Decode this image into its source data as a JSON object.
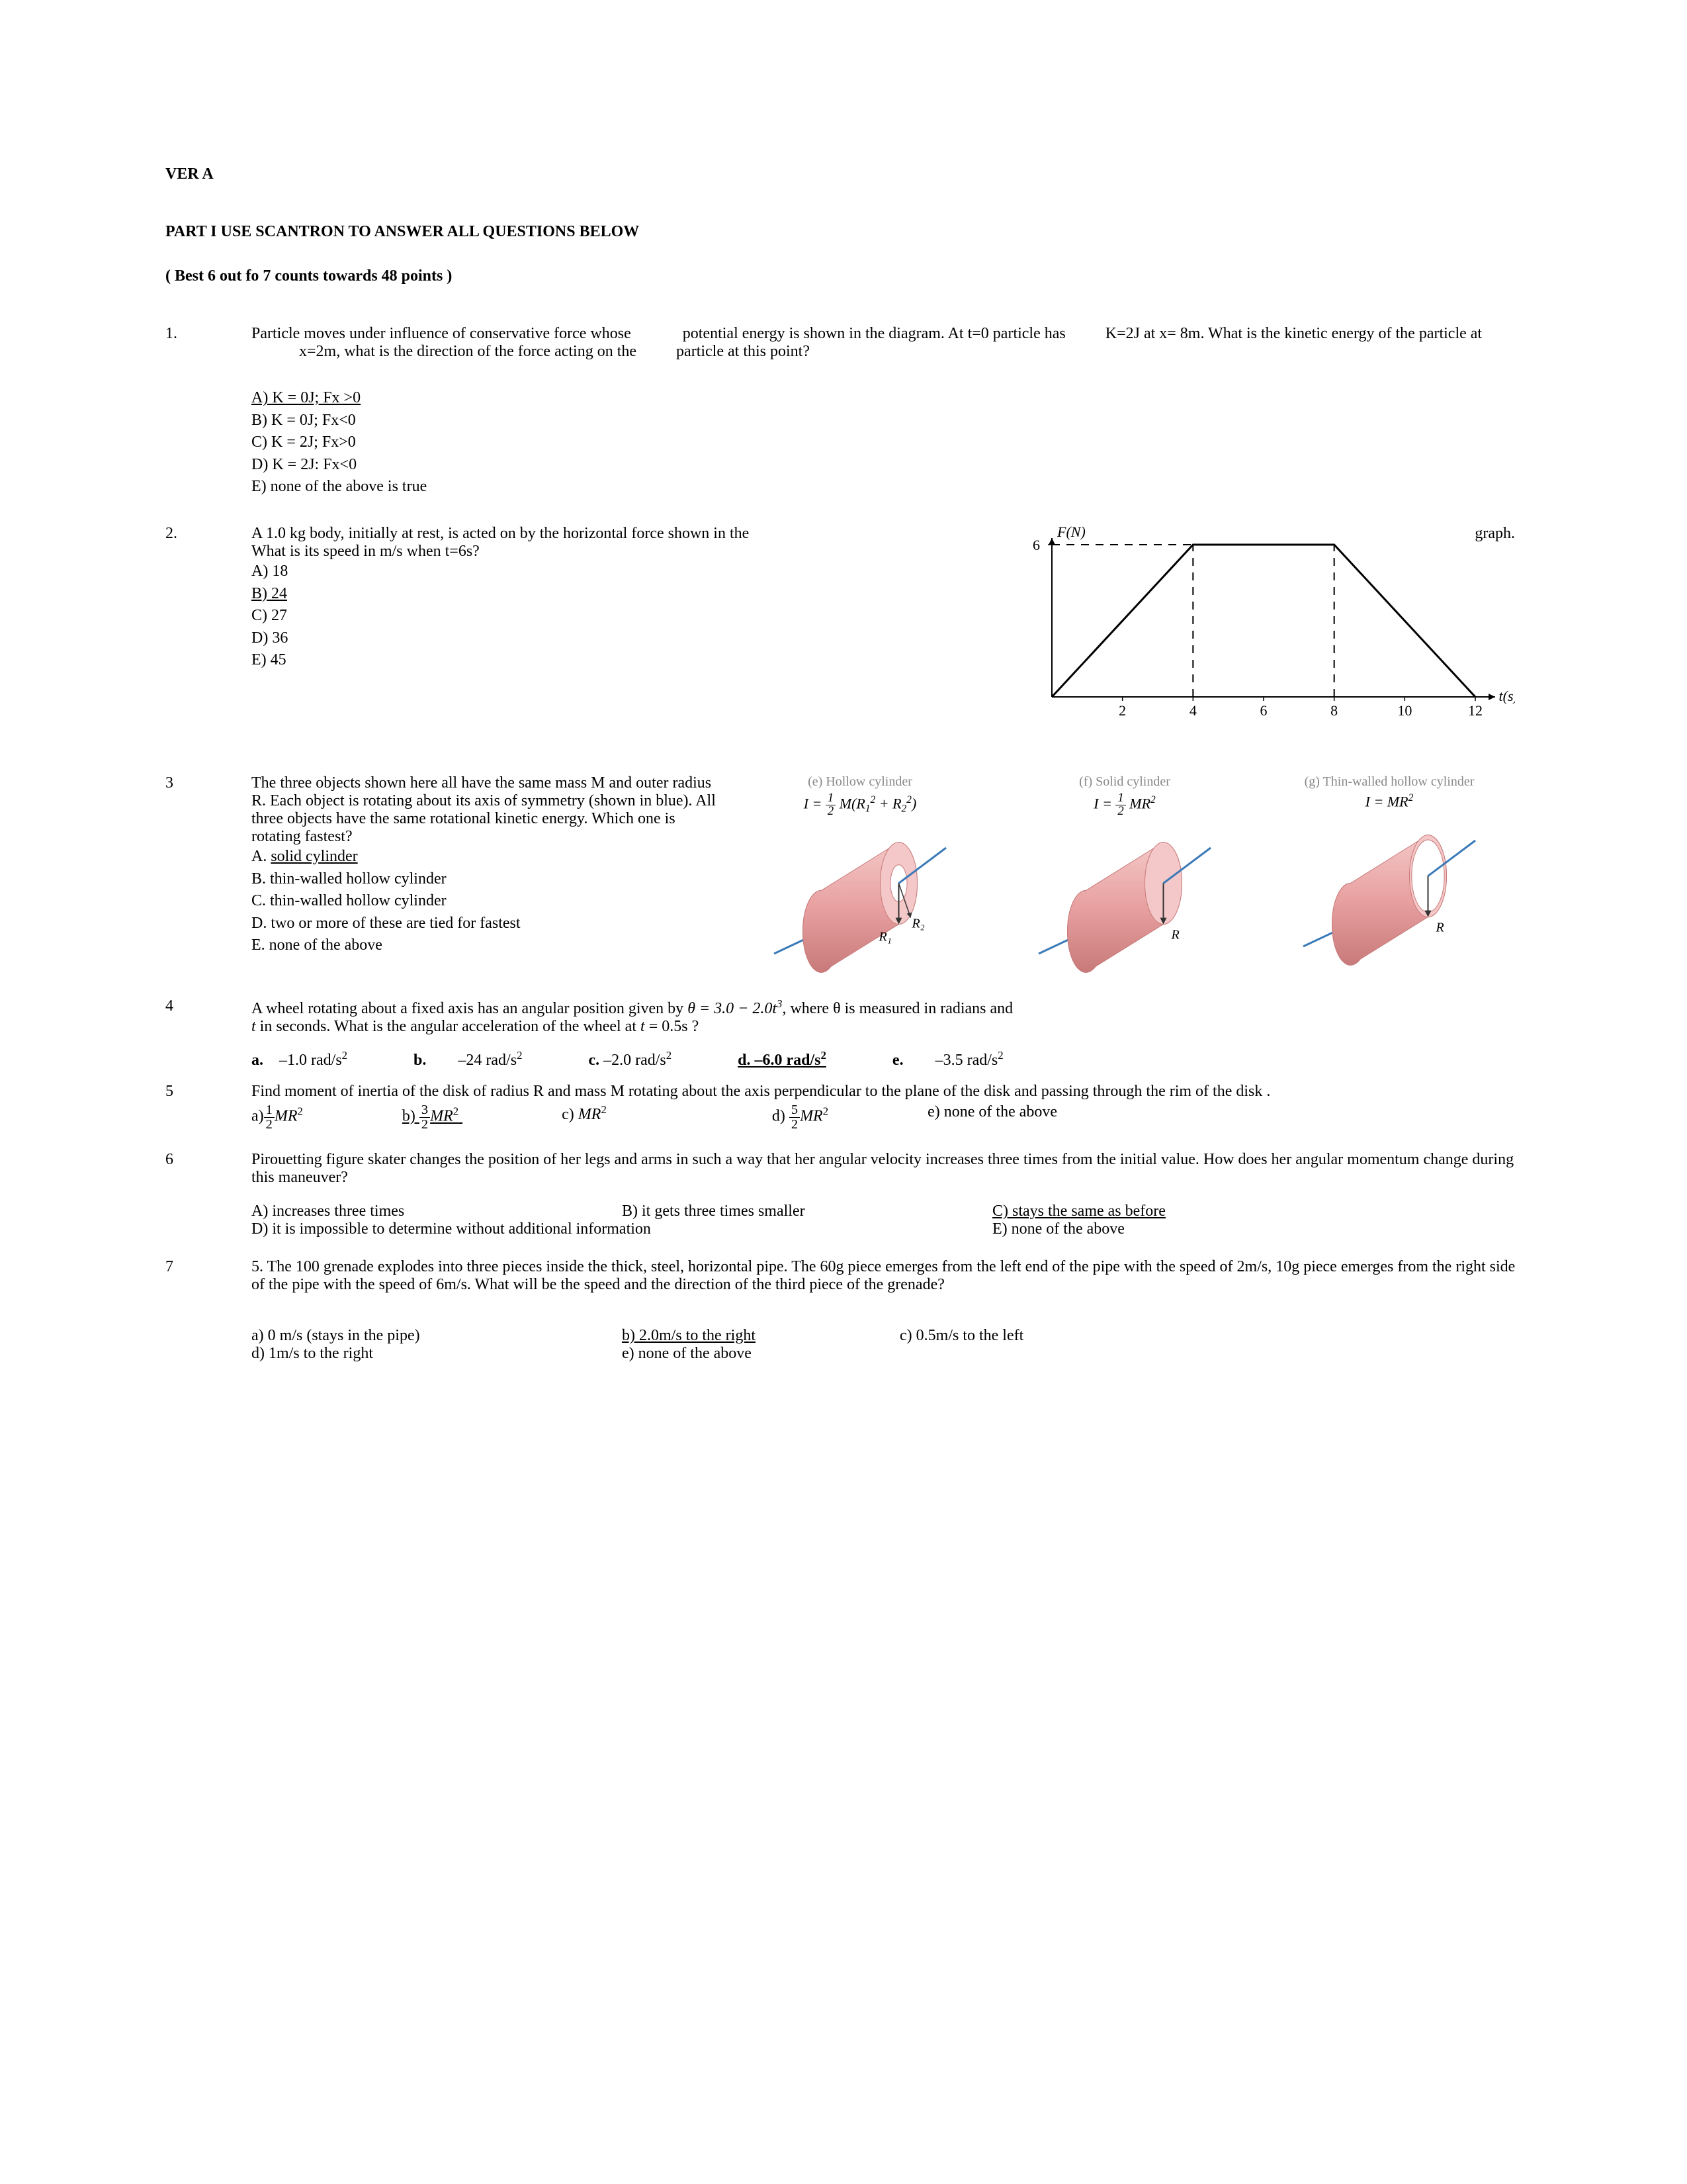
{
  "header": {
    "version": "VER A",
    "part": "PART I  USE SCANTRON TO ANSWER ALL QUESTIONS BELOW",
    "scoring": "( Best 6 out fo 7 counts towards 48 points )"
  },
  "q1": {
    "num": "1.",
    "text": "Particle moves under influence of conservative force whose             potential energy is shown in the diagram. At t=0 particle has          K=2J at x= 8m. What is the kinetic energy of the particle at             x=2m, what is the direction of the force acting on the          particle at  this point?",
    "opts": {
      "a": "A) K = 0J; Fx >0",
      "b": "B) K = 0J;  Fx<0",
      "c": "C) K = 2J; Fx>0",
      "d": "D) K = 2J: Fx<0",
      "e": "E) none of the above is true"
    }
  },
  "q2": {
    "num": "2.",
    "text_a": "A 1.0 kg body, initially at rest, is acted on by the horizontal force shown in the",
    "text_b": "graph.",
    "text_c": "What is its speed in m/s when t=6s?",
    "opts": {
      "a": "A) 18",
      "b": "B) 24",
      "c": "C) 27",
      "d": "D) 36",
      "e": "E) 45"
    },
    "chart": {
      "ylabel": "F(N)",
      "xlabel": "t(s)",
      "ymax": 6,
      "xticks": [
        2,
        4,
        6,
        8,
        10,
        12
      ],
      "points": [
        [
          0,
          0
        ],
        [
          4,
          6
        ],
        [
          8,
          6
        ],
        [
          12,
          0
        ]
      ],
      "dash_x": [
        4,
        8
      ],
      "axis_color": "#000",
      "dash_color": "#000",
      "line_color": "#000"
    }
  },
  "q3": {
    "num": "3",
    "text": "The three objects shown here all have the same mass M and outer radius R. Each object is rotating about its axis of symmetry (shown in blue). All three objects have the same rotational kinetic energy. Which one is rotating fastest?",
    "opts": {
      "a": "A. solid cylinder",
      "b": "B. thin-walled hollow cylinder",
      "c": "C. thin-walled hollow cylinder",
      "d": "D. two or more of these are tied for fastest",
      "e": "E. none of the above"
    },
    "cylinders": {
      "e": {
        "label": "(e) Hollow cylinder",
        "formula_html": "I = <span class='frac'><span class='n'>1</span><span class='d'>2</span></span> M(R<span class='sub'>1</span><span class='sup'>2</span> + R<span class='sub'>2</span><span class='sup'>2</span>)",
        "r_label1": "R₁",
        "r_label2": "R₂",
        "inner_ratio": 0.45
      },
      "f": {
        "label": "(f) Solid cylinder",
        "formula_html": "I = <span class='frac'><span class='n'>1</span><span class='d'>2</span></span> MR<span class='sup'>2</span>",
        "r_label": "R",
        "inner_ratio": 0
      },
      "g": {
        "label": "(g) Thin-walled hollow cylinder",
        "formula_html": "I = MR<span class='sup'>2</span>",
        "r_label": "R",
        "inner_ratio": 0.88
      },
      "colors": {
        "body": "#e8a0a0",
        "body_dark": "#c87a7a",
        "body_light": "#f4c8c8",
        "axis": "#3a7ab8",
        "arrow": "#333",
        "text": "#000"
      }
    }
  },
  "q4": {
    "num": "4",
    "text_a": "A wheel rotating about a fixed axis has an angular position given by  ",
    "eq": "θ = 3.0 − 2.0t",
    "eq_sup": "3",
    "text_b": ", where  θ is measured in radians and ",
    "text_c": "t",
    "text_d": " in seconds. What is the angular acceleration of the wheel at ",
    "text_e": "t",
    "text_f": " = 0.5s ?",
    "opts": {
      "a_lab": "a.",
      "a": "–1.0 rad/s",
      "b_lab": "b.",
      "b": "–24 rad/s",
      "c_lab": "c.",
      "c": "–2.0 rad/s",
      "d_lab": "d.",
      "d": "–6.0 rad/s",
      "e_lab": "e.",
      "e": "–3.5 rad/s"
    }
  },
  "q5": {
    "num": "5",
    "text": "Find moment of inertia of the disk of radius R and mass M rotating about the axis perpendicular to the plane of the disk and passing through the rim of the disk .",
    "opts": {
      "a_pre": "a)",
      "b_pre": "b)",
      "c_pre": "c) ",
      "d_pre": "d) ",
      "e": "e) none of the above",
      "c_val": "MR",
      "mr2": "MR"
    }
  },
  "q6": {
    "num": "6",
    "text": "Pirouetting figure skater changes the position of her legs and arms in such a way that her angular velocity increases three times from the initial value. How does her angular momentum change during this maneuver?",
    "opts": {
      "a": "A) increases three times",
      "b": "B) it gets three times smaller",
      "c": "C) stays the same as before",
      "d": "D) it is impossible to determine without additional information",
      "e": "E) none of the above"
    }
  },
  "q7": {
    "num": "7",
    "text": "5. The 100 grenade explodes into three pieces inside the thick, steel, horizontal pipe. The 60g piece emerges from the left end of the pipe with the speed of 2m/s, 10g piece emerges from the right side of the pipe with the speed of 6m/s. What will be the speed and the direction of the third piece of the grenade?",
    "opts": {
      "a": "a) 0 m/s   (stays in the pipe)",
      "b": "b) 2.0m/s to the right",
      "c": "c) 0.5m/s to the left",
      "d": "d) 1m/s to the right",
      "e": "e) none of the above"
    }
  }
}
